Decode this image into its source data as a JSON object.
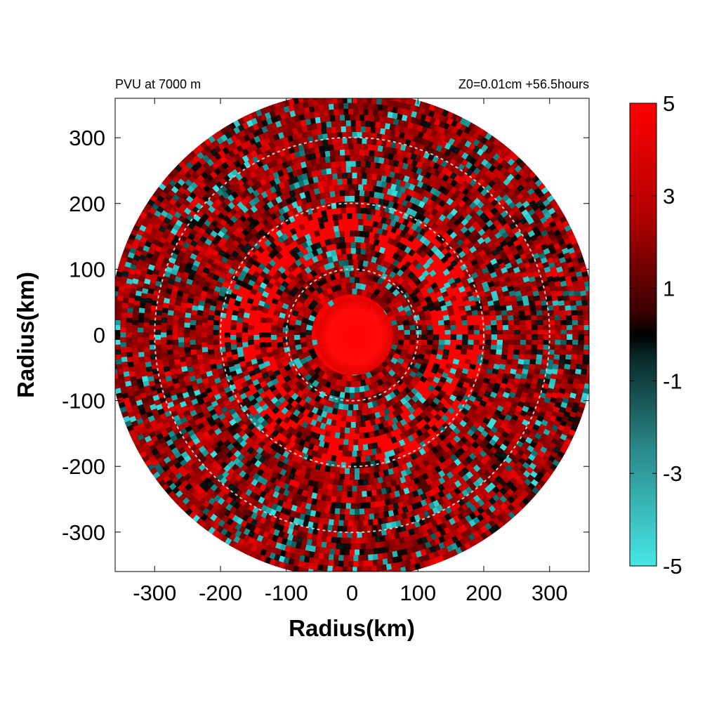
{
  "chart_data": {
    "type": "heatmap",
    "title_left": "PVU at  7000 m",
    "title_right": "Z0=0.01cm  +56.5hours",
    "xlabel": "Radius(km)",
    "ylabel": "Radius(km)",
    "xlim": [
      -360,
      360
    ],
    "ylim": [
      -360,
      360
    ],
    "x_ticks": [
      -300,
      -200,
      -100,
      0,
      100,
      200,
      300
    ],
    "y_ticks": [
      300,
      200,
      100,
      0,
      -100,
      -200,
      -300
    ],
    "x_tick_labels": [
      "-300",
      "-200",
      "-100",
      "0",
      "100",
      "200",
      "300"
    ],
    "y_tick_labels": [
      "300",
      "200",
      "100",
      "0",
      "-100",
      "-200",
      "-300"
    ],
    "domain_radius_km": 370,
    "reference_circle_radii_km": [
      100,
      200,
      300
    ],
    "colorbar": {
      "min": -5,
      "max": 5,
      "ticks": [
        5,
        3,
        1,
        -1,
        -3,
        -5
      ],
      "tick_labels": [
        "5",
        "3",
        "1",
        "-1",
        "-3",
        "-5"
      ],
      "colors": {
        "low": "#40e0e0",
        "mid": "#000000",
        "high": "#ff0000"
      }
    },
    "field_description": {
      "core_radius_km": 60,
      "core_value": 5,
      "background_value": 2
    }
  }
}
